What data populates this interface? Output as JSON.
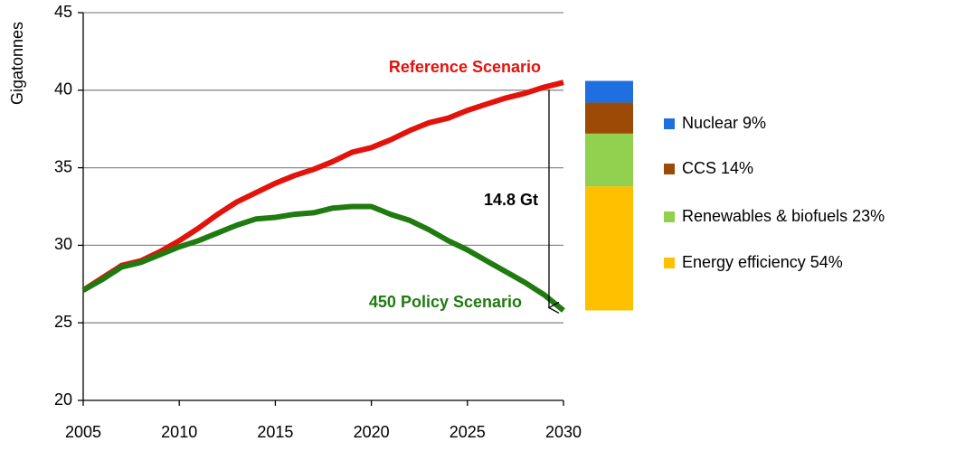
{
  "chart_data": {
    "type": "line",
    "y_label": "Gigatonnes",
    "x": [
      2005,
      2006,
      2007,
      2008,
      2009,
      2010,
      2011,
      2012,
      2013,
      2014,
      2015,
      2016,
      2017,
      2018,
      2019,
      2020,
      2021,
      2022,
      2023,
      2024,
      2025,
      2026,
      2027,
      2028,
      2029,
      2030
    ],
    "series": [
      {
        "name": "Reference Scenario",
        "color": "#e3120b",
        "values": [
          27.1,
          27.9,
          28.7,
          29.0,
          29.6,
          30.3,
          31.1,
          32.0,
          32.8,
          33.4,
          34.0,
          34.5,
          34.9,
          35.4,
          36.0,
          36.3,
          36.8,
          37.4,
          37.9,
          38.2,
          38.7,
          39.1,
          39.5,
          39.8,
          40.2,
          40.5
        ]
      },
      {
        "name": "450 Policy Scenario",
        "color": "#1f7a0f",
        "values": [
          27.1,
          27.8,
          28.6,
          28.9,
          29.4,
          29.9,
          30.3,
          30.8,
          31.3,
          31.7,
          31.8,
          32.0,
          32.1,
          32.4,
          32.5,
          32.5,
          32.0,
          31.6,
          31.0,
          30.3,
          29.7,
          29.0,
          28.3,
          27.6,
          26.8,
          25.8
        ]
      }
    ],
    "gap_label": "14.8 Gt",
    "bar_segments": [
      {
        "name": "Energy efficiency 54%",
        "color": "#ffc000",
        "value": 8.0
      },
      {
        "name": "Renewables & biofuels 23%",
        "color": "#92d050",
        "value": 3.4
      },
      {
        "name": "CCS 14%",
        "color": "#9c4a06",
        "value": 2.0
      },
      {
        "name": "Nuclear 9%",
        "color": "#1f6fe0",
        "value": 1.4
      }
    ],
    "xlim": [
      2005,
      2030
    ],
    "xticks": [
      2005,
      2010,
      2015,
      2020,
      2025,
      2030
    ],
    "ylim": [
      20,
      45
    ],
    "yticks": [
      20,
      25,
      30,
      35,
      40,
      45
    ],
    "grid": true
  }
}
